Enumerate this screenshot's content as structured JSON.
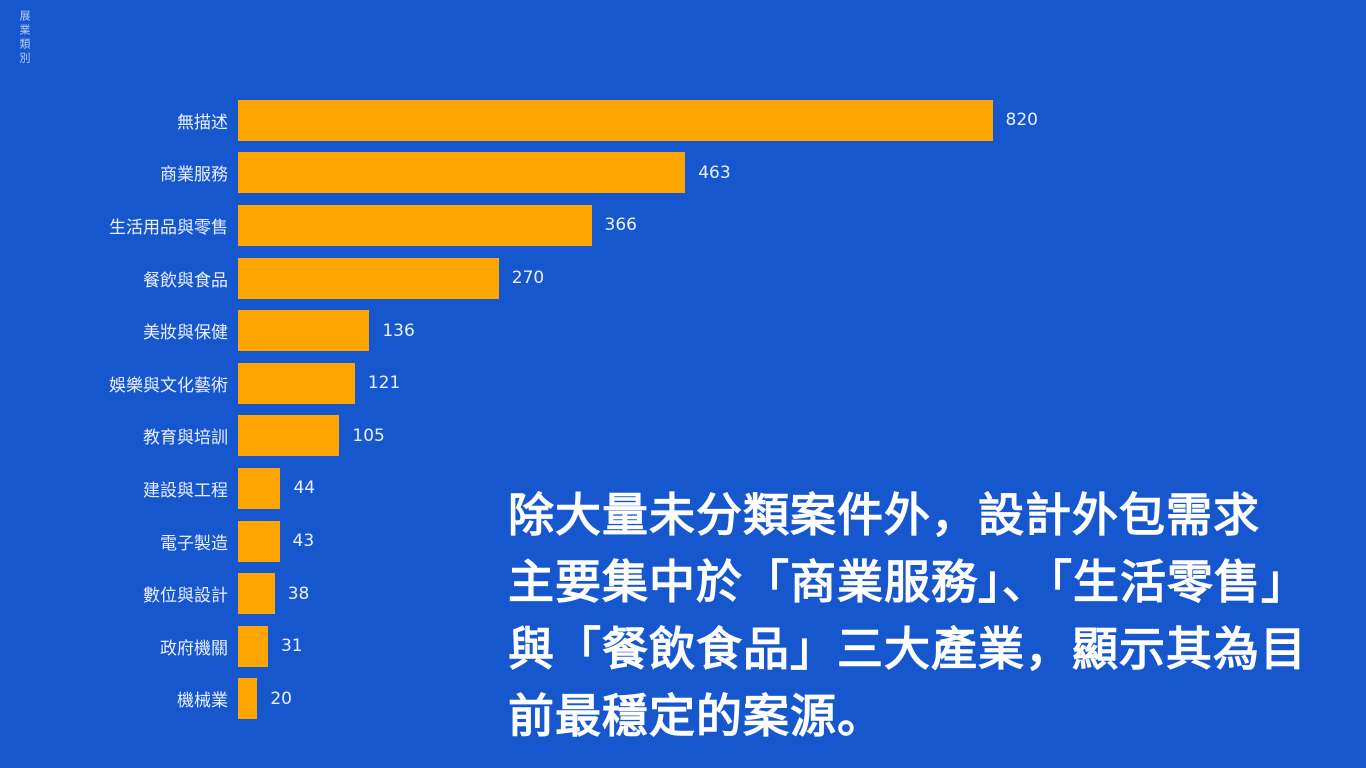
{
  "colors": {
    "background": "#1757CE",
    "bar": "#FFA502",
    "label_text": "#E9EFFB",
    "annotation_text": "#FFFFFF"
  },
  "axis": {
    "title": "展業類別"
  },
  "chart_data": {
    "type": "bar",
    "orientation": "horizontal",
    "title": "",
    "xlabel": "",
    "ylabel": "展業類別",
    "grid": false,
    "legend": false,
    "value_labels": "end-of-bar",
    "xlim": [
      0,
      820
    ],
    "categories": [
      "無描述",
      "商業服務",
      "生活用品與零售",
      "餐飲與食品",
      "美妝與保健",
      "娛樂與文化藝術",
      "教育與培訓",
      "建設與工程",
      "電子製造",
      "數位與設計",
      "政府機關",
      "機械業"
    ],
    "values": [
      820,
      463,
      366,
      270,
      136,
      121,
      105,
      44,
      43,
      38,
      31,
      20
    ]
  },
  "annotation": {
    "lines": [
      "除大量未分類案件外，設計外包需求",
      "主要集中於「商業服務」、「生活零售」",
      "與「餐飲食品」三大產業，顯示其為目",
      "前最穩定的案源。"
    ],
    "full_text": "除大量未分類案件外，設計外包需求主要集中於「商業服務」、「生活零售」與「餐飲食品」三大產業，顯示其為目前最穩定的案源。"
  }
}
